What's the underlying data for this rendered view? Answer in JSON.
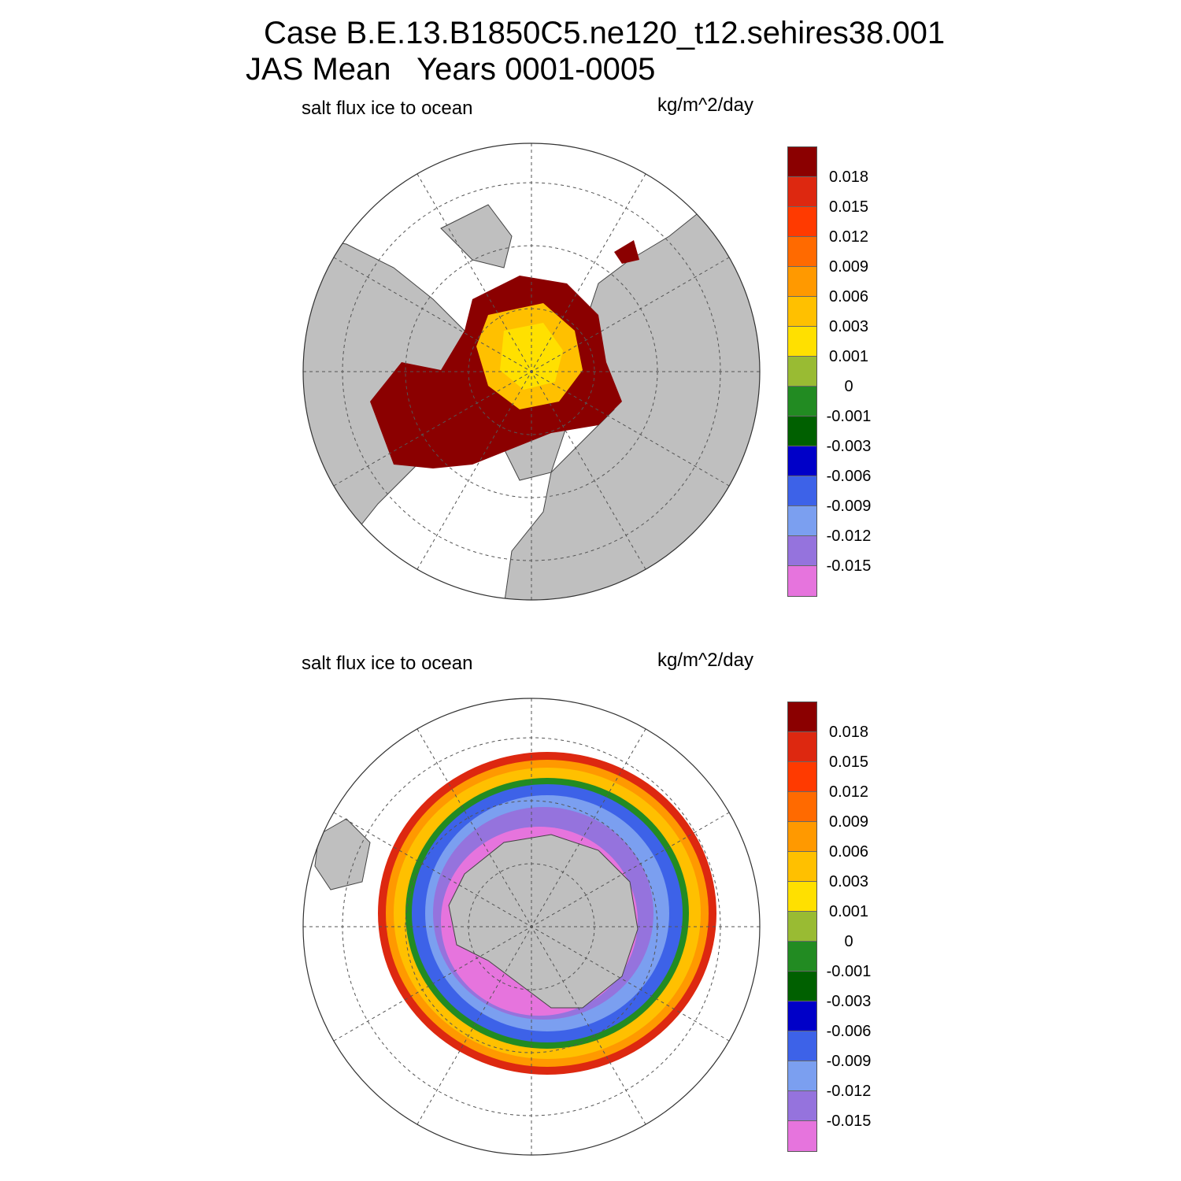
{
  "title": {
    "line1": "Case B.E.13.B1850C5.ne120_t12.sehires38.001",
    "line2": "JAS Mean   Years 0001-0005"
  },
  "colors": {
    "land": "#bfbfbf",
    "ocean": "#ffffff",
    "grid": "#555555",
    "palette": [
      "#e674dd",
      "#9573dd",
      "#7b9ff0",
      "#3d62e8",
      "#0000c8",
      "#006000",
      "#228b22",
      "#99bb33",
      "#ffe000",
      "#ffc000",
      "#ff9900",
      "#ff6a00",
      "#ff3a00",
      "#dd2810",
      "#8b0000"
    ]
  },
  "panels": [
    {
      "id": "north",
      "variable_label": "salt flux ice to ocean",
      "units_label": "kg/m^2/day",
      "hemisphere": "Arctic (north polar stereographic)"
    },
    {
      "id": "south",
      "variable_label": "salt flux ice to ocean",
      "units_label": "kg/m^2/day",
      "hemisphere": "Antarctic (south polar stereographic)"
    }
  ],
  "colorbar": {
    "tick_labels": [
      "0.018",
      "0.015",
      "0.012",
      "0.009",
      "0.006",
      "0.003",
      "0.001",
      "0",
      "-0.001",
      "-0.003",
      "-0.006",
      "-0.009",
      "-0.012",
      "-0.015"
    ]
  }
}
